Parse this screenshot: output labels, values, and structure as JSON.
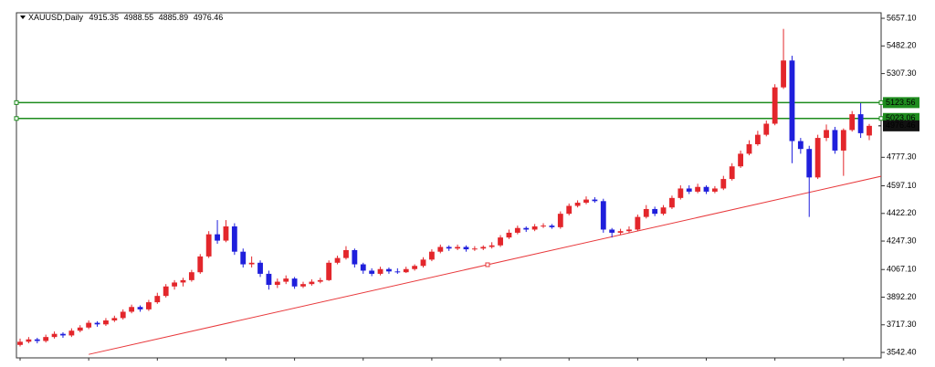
{
  "chart_data": {
    "type": "candlestick",
    "title": "XAUUSD,Daily",
    "up_color": "#e3262b",
    "down_color": "#1f1fdc",
    "candles": [
      [
        3590,
        3630,
        3580,
        3610
      ],
      [
        3610,
        3640,
        3600,
        3625
      ],
      [
        3625,
        3635,
        3600,
        3615
      ],
      [
        3615,
        3655,
        3605,
        3640
      ],
      [
        3640,
        3675,
        3630,
        3660
      ],
      [
        3660,
        3670,
        3635,
        3650
      ],
      [
        3650,
        3695,
        3640,
        3680
      ],
      [
        3680,
        3715,
        3670,
        3700
      ],
      [
        3700,
        3745,
        3690,
        3730
      ],
      [
        3730,
        3740,
        3705,
        3720
      ],
      [
        3720,
        3760,
        3710,
        3745
      ],
      [
        3745,
        3775,
        3735,
        3760
      ],
      [
        3760,
        3815,
        3750,
        3800
      ],
      [
        3800,
        3845,
        3790,
        3830
      ],
      [
        3830,
        3840,
        3800,
        3815
      ],
      [
        3815,
        3875,
        3805,
        3860
      ],
      [
        3860,
        3920,
        3850,
        3900
      ],
      [
        3900,
        3975,
        3890,
        3960
      ],
      [
        3960,
        4000,
        3940,
        3985
      ],
      [
        3985,
        4015,
        3960,
        4000
      ],
      [
        4000,
        4065,
        3990,
        4050
      ],
      [
        4050,
        4165,
        4040,
        4150
      ],
      [
        4150,
        4310,
        4140,
        4290
      ],
      [
        4290,
        4380,
        4230,
        4250
      ],
      [
        4250,
        4380,
        4240,
        4340
      ],
      [
        4340,
        4360,
        4160,
        4180
      ],
      [
        4180,
        4200,
        4080,
        4100
      ],
      [
        4100,
        4150,
        4080,
        4110
      ],
      [
        4110,
        4125,
        4020,
        4040
      ],
      [
        4040,
        4060,
        3940,
        3970
      ],
      [
        3970,
        4010,
        3950,
        3990
      ],
      [
        3990,
        4030,
        3975,
        4010
      ],
      [
        4010,
        4020,
        3945,
        3960
      ],
      [
        3960,
        3990,
        3950,
        3975
      ],
      [
        3975,
        4005,
        3965,
        3990
      ],
      [
        3990,
        4015,
        3980,
        4000
      ],
      [
        4000,
        4125,
        3995,
        4110
      ],
      [
        4110,
        4155,
        4100,
        4140
      ],
      [
        4140,
        4215,
        4130,
        4190
      ],
      [
        4190,
        4200,
        4080,
        4100
      ],
      [
        4100,
        4110,
        4040,
        4060
      ],
      [
        4060,
        4075,
        4025,
        4040
      ],
      [
        4040,
        4085,
        4030,
        4070
      ],
      [
        4070,
        4080,
        4040,
        4055
      ],
      [
        4055,
        4075,
        4040,
        4050
      ],
      [
        4050,
        4085,
        4045,
        4070
      ],
      [
        4070,
        4100,
        4060,
        4090
      ],
      [
        4090,
        4145,
        4080,
        4130
      ],
      [
        4130,
        4195,
        4120,
        4180
      ],
      [
        4180,
        4225,
        4170,
        4210
      ],
      [
        4210,
        4220,
        4185,
        4200
      ],
      [
        4200,
        4225,
        4190,
        4210
      ],
      [
        4210,
        4220,
        4180,
        4195
      ],
      [
        4195,
        4215,
        4185,
        4200
      ],
      [
        4200,
        4220,
        4190,
        4210
      ],
      [
        4210,
        4240,
        4200,
        4220
      ],
      [
        4220,
        4285,
        4210,
        4270
      ],
      [
        4270,
        4320,
        4260,
        4300
      ],
      [
        4300,
        4345,
        4290,
        4330
      ],
      [
        4330,
        4340,
        4305,
        4320
      ],
      [
        4320,
        4355,
        4310,
        4340
      ],
      [
        4340,
        4360,
        4330,
        4345
      ],
      [
        4345,
        4355,
        4325,
        4335
      ],
      [
        4335,
        4435,
        4325,
        4420
      ],
      [
        4420,
        4485,
        4410,
        4470
      ],
      [
        4470,
        4505,
        4460,
        4490
      ],
      [
        4490,
        4530,
        4480,
        4510
      ],
      [
        4510,
        4525,
        4490,
        4500
      ],
      [
        4500,
        4515,
        4300,
        4320
      ],
      [
        4320,
        4330,
        4270,
        4300
      ],
      [
        4300,
        4325,
        4285,
        4310
      ],
      [
        4310,
        4340,
        4300,
        4320
      ],
      [
        4320,
        4415,
        4310,
        4400
      ],
      [
        4400,
        4475,
        4390,
        4450
      ],
      [
        4450,
        4465,
        4405,
        4420
      ],
      [
        4420,
        4475,
        4410,
        4460
      ],
      [
        4460,
        4535,
        4450,
        4520
      ],
      [
        4520,
        4600,
        4510,
        4580
      ],
      [
        4580,
        4600,
        4545,
        4560
      ],
      [
        4560,
        4610,
        4550,
        4590
      ],
      [
        4590,
        4600,
        4545,
        4560
      ],
      [
        4560,
        4595,
        4550,
        4580
      ],
      [
        4580,
        4660,
        4570,
        4640
      ],
      [
        4640,
        4740,
        4630,
        4720
      ],
      [
        4720,
        4820,
        4710,
        4800
      ],
      [
        4800,
        4885,
        4790,
        4860
      ],
      [
        4860,
        4945,
        4850,
        4920
      ],
      [
        4920,
        5010,
        4910,
        4990
      ],
      [
        4990,
        5240,
        4980,
        5220
      ],
      [
        5220,
        5590,
        5210,
        5390
      ],
      [
        5390,
        5420,
        4740,
        4880
      ],
      [
        4880,
        4900,
        4800,
        4830
      ],
      [
        4830,
        4850,
        4400,
        4650
      ],
      [
        4650,
        4920,
        4640,
        4900
      ],
      [
        4900,
        4985,
        4880,
        4950
      ],
      [
        4950,
        4970,
        4800,
        4820
      ],
      [
        4820,
        4960,
        4660,
        4950
      ],
      [
        4950,
        5070,
        4940,
        5050
      ],
      [
        5050,
        5120,
        4900,
        4930
      ],
      [
        4915.35,
        4988.55,
        4885.89,
        4976.46
      ]
    ],
    "levels": [
      5123.56,
      5023.06
    ],
    "level_color": "#1e8c1e",
    "trendline": {
      "from": [
        8,
        3530
      ],
      "to": [
        101,
        4665
      ],
      "color": "#e8393c"
    },
    "ylim": [
      3508,
      5692
    ],
    "yticks": [
      {
        "value": 5657.1,
        "label": "5657.10"
      },
      {
        "value": 5482.2,
        "label": "5482.20"
      },
      {
        "value": 5307.3,
        "label": "5307.30"
      },
      {
        "value": 4777.3,
        "label": "4777.30"
      },
      {
        "value": 4597.1,
        "label": "4597.10"
      },
      {
        "value": 4422.2,
        "label": "4422.20"
      },
      {
        "value": 4247.3,
        "label": "4247.30"
      },
      {
        "value": 4067.1,
        "label": "4067.10"
      },
      {
        "value": 3892.2,
        "label": "3892.20"
      },
      {
        "value": 3717.3,
        "label": "3717.30"
      },
      {
        "value": 3542.4,
        "label": "3542.40"
      }
    ]
  }
}
